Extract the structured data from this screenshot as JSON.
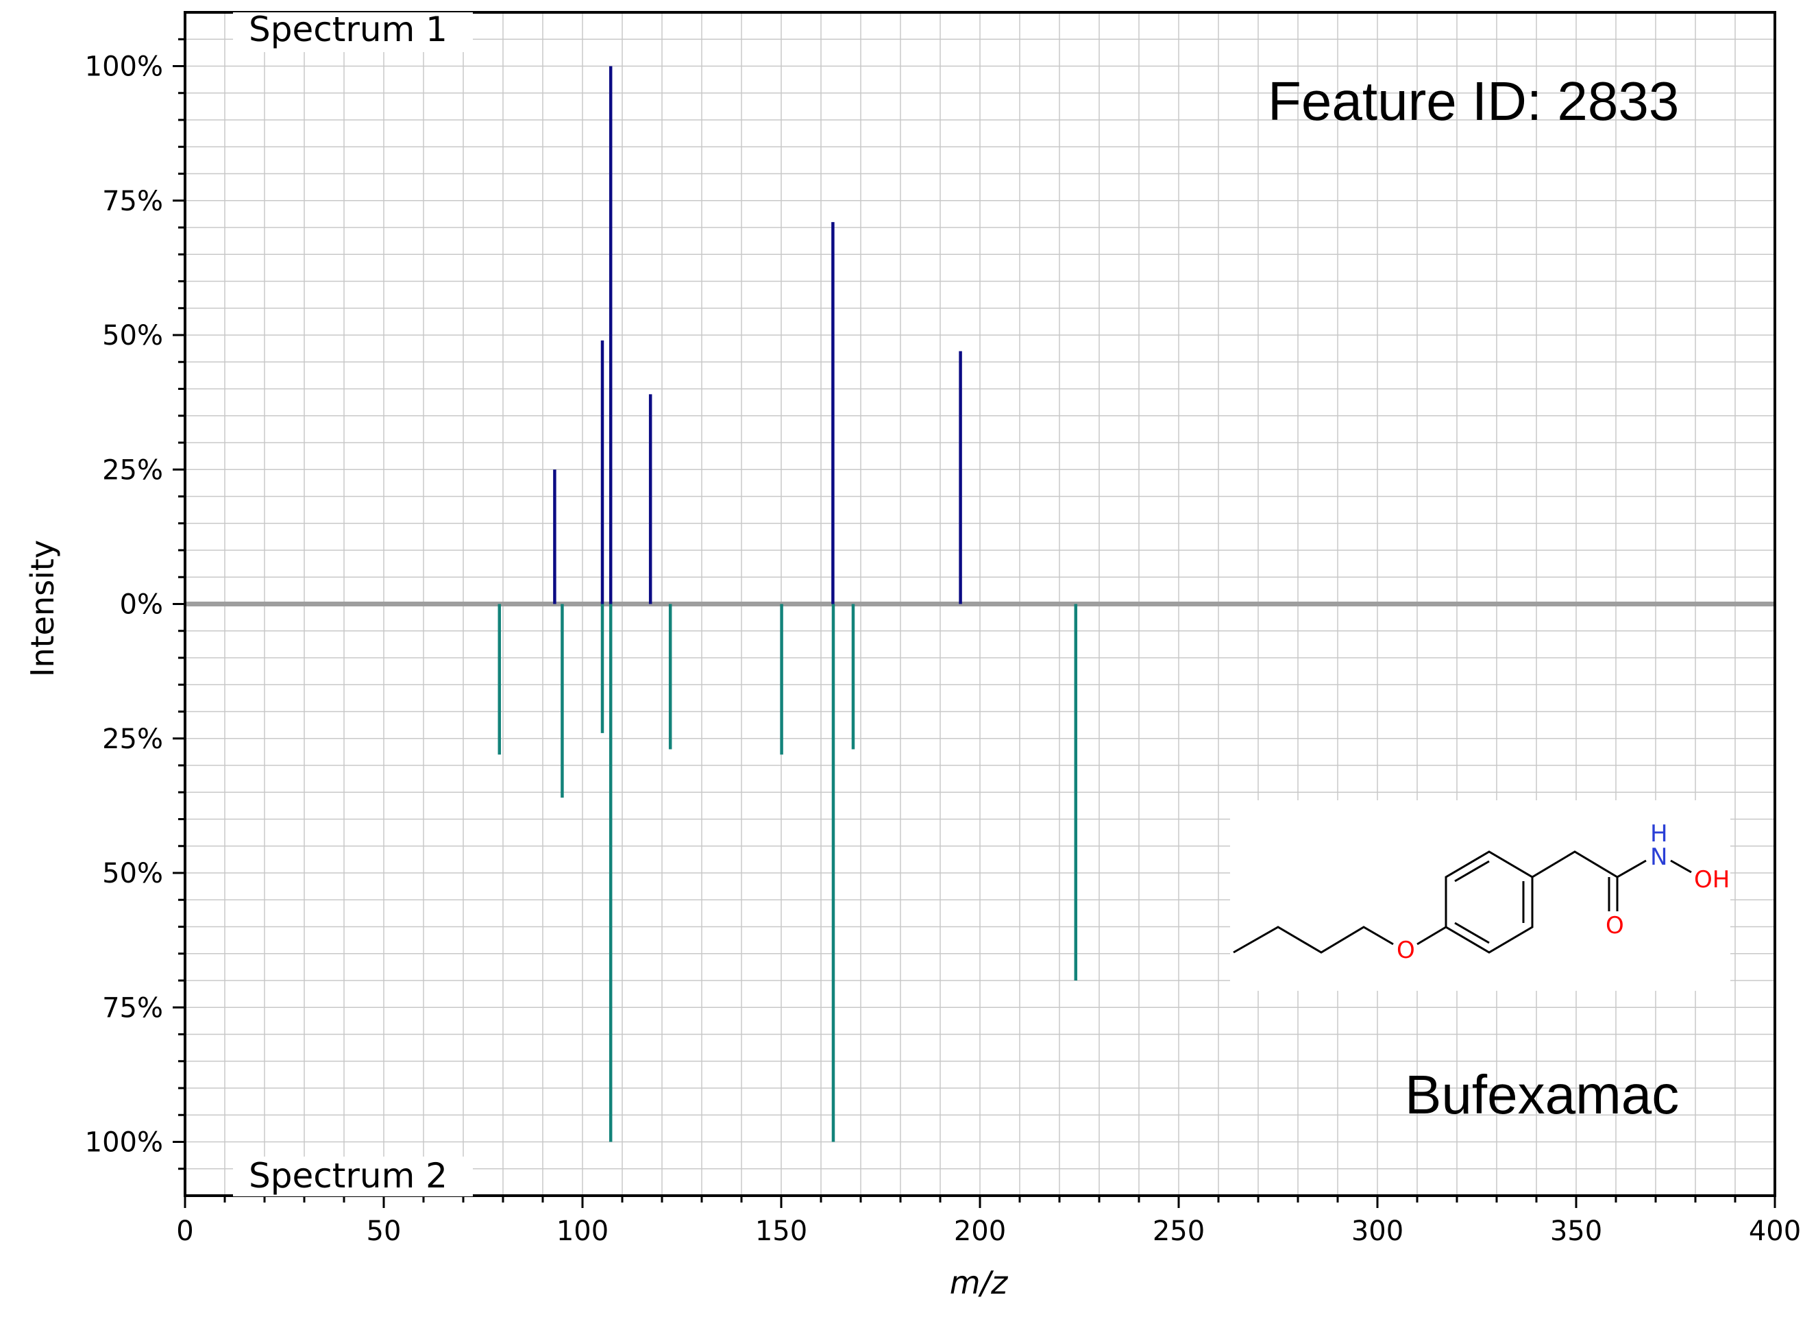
{
  "chart_data": {
    "type": "bar",
    "xlabel": "m/z",
    "ylabel": "Intensity",
    "xlim": [
      0,
      400
    ],
    "ylim": [
      -110,
      110
    ],
    "x_ticks": [
      0,
      50,
      100,
      150,
      200,
      250,
      300,
      350,
      400
    ],
    "y_ticks": [
      {
        "value": 100,
        "label": "100%"
      },
      {
        "value": 75,
        "label": "75%"
      },
      {
        "value": 50,
        "label": "50%"
      },
      {
        "value": 25,
        "label": "25%"
      },
      {
        "value": 0,
        "label": "0%"
      },
      {
        "value": -25,
        "label": "25%"
      },
      {
        "value": -50,
        "label": "50%"
      },
      {
        "value": -75,
        "label": "75%"
      },
      {
        "value": -100,
        "label": "100%"
      }
    ],
    "grid": true,
    "series": [
      {
        "name": "Spectrum 1",
        "color": "#0b0b84",
        "direction": "up",
        "x": [
          93.0,
          105.0,
          107.1,
          117.1,
          163.0,
          195.1
        ],
        "values": [
          25,
          49,
          100,
          39,
          71,
          47
        ]
      },
      {
        "name": "Spectrum 2",
        "color": "#13837a",
        "direction": "down",
        "x": [
          79.1,
          94.9,
          105.0,
          107.1,
          122.1,
          150.1,
          163.1,
          168.1,
          224.1
        ],
        "values": [
          28,
          36,
          24,
          100,
          27,
          28,
          100,
          27,
          70
        ]
      }
    ],
    "annotations": {
      "feature_id": "Feature ID: 2833",
      "compound_name": "Bufexamac"
    },
    "structure_atoms": {
      "oxygen_ether": "O",
      "oxygen_carbonyl": "O",
      "hydrogen": "H",
      "nitrogen": "N",
      "hydroxyl": "OH"
    },
    "colors": {
      "baseline": "#9e9e9e",
      "grid": "#c8c8c8",
      "oxygen": "#ff0000",
      "nitrogen": "#2a3fd6"
    }
  }
}
